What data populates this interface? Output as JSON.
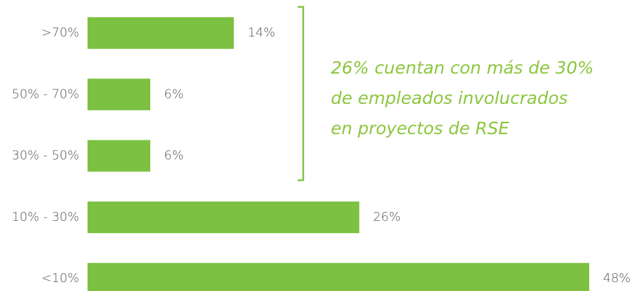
{
  "chart_data": {
    "type": "bar",
    "orientation": "horizontal",
    "categories": [
      ">70%",
      "50% - 70%",
      "30% - 50%",
      "10% - 30%",
      "<10%"
    ],
    "values": [
      14,
      6,
      6,
      26,
      48
    ],
    "value_labels": [
      "14%",
      "6%",
      "6%",
      "26%",
      "48%"
    ],
    "color": "#7dc142",
    "annotation": [
      "26% cuentan con más de 30%",
      "de empleados involucrados",
      "en proyectos de RSE"
    ],
    "annotation_color": "#8cc63f"
  }
}
